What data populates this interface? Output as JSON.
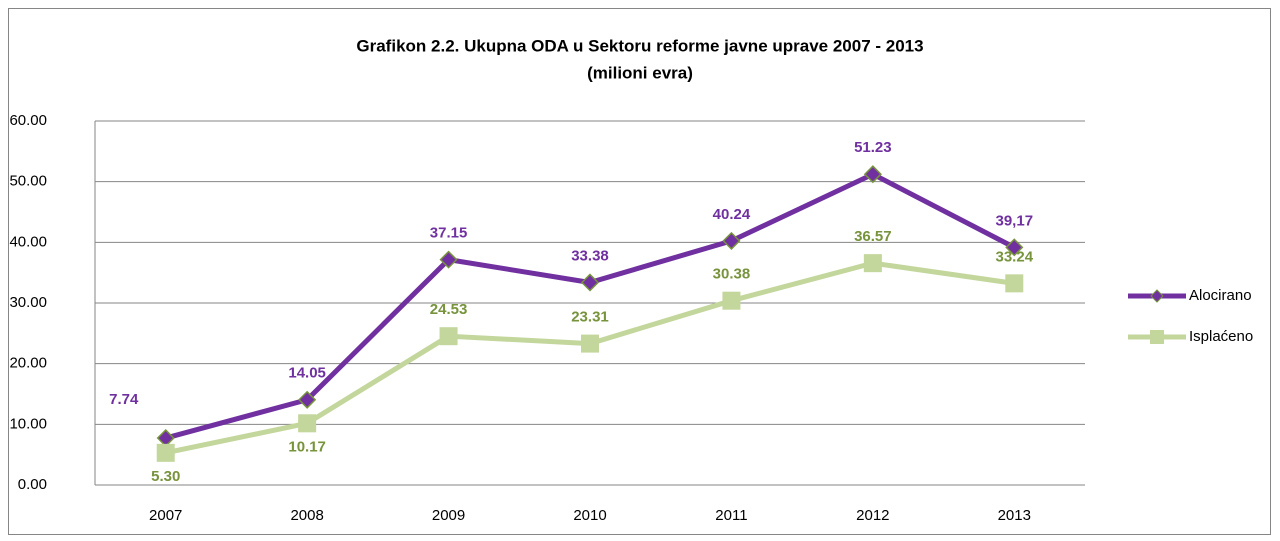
{
  "chart_data": {
    "type": "line",
    "title": "Grafikon 2.2. Ukupna  ODA u Sektoru reforme javne uprave 2007 - 2013",
    "subtitle": "(milioni evra)",
    "categories": [
      "2007",
      "2008",
      "2009",
      "2010",
      "2011",
      "2012",
      "2013"
    ],
    "series": [
      {
        "name": "Alocirano",
        "color": "#7030a0",
        "label_color": "#7030a0",
        "marker": "diamond",
        "values": [
          7.74,
          14.05,
          37.15,
          33.38,
          40.24,
          51.23,
          39.17
        ],
        "value_labels": [
          "7.74",
          "14.05",
          "37.15",
          "33.38",
          "40.24",
          "51.23",
          "39,17"
        ]
      },
      {
        "name": "Isplaćeno",
        "color": "#c3d69b",
        "label_color": "#77933c",
        "marker": "square",
        "values": [
          5.3,
          10.17,
          24.53,
          23.31,
          30.38,
          36.57,
          33.24
        ],
        "value_labels": [
          "5.30",
          "10.17",
          "24.53",
          "23.31",
          "30.38",
          "36.57",
          "33.24"
        ]
      }
    ],
    "ylim": [
      0,
      60
    ],
    "yticks": [
      {
        "value": 0,
        "label": "0.00"
      },
      {
        "value": 10,
        "label": "10.00"
      },
      {
        "value": 20,
        "label": "20.00"
      },
      {
        "value": 30,
        "label": "30.00"
      },
      {
        "value": 40,
        "label": "40.00"
      },
      {
        "value": 50,
        "label": "50.00"
      },
      {
        "value": 60,
        "label": "60.00"
      }
    ],
    "grid": true,
    "legend": "right"
  }
}
